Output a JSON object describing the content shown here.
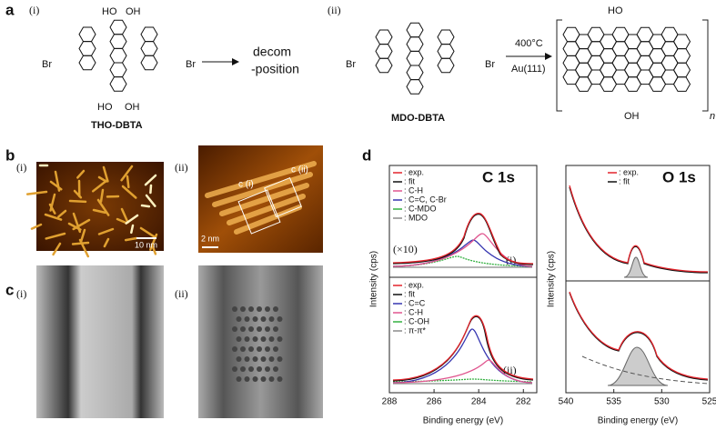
{
  "panel_labels": [
    "a",
    "b",
    "c",
    "d"
  ],
  "a": {
    "i": "(i)",
    "ii": "(ii)",
    "tho": {
      "oh_top": [
        "HO",
        "OH"
      ],
      "oh_bottom": [
        "HO",
        "OH"
      ],
      "br": [
        "Br",
        "Br"
      ],
      "name": "THO-DBTA"
    },
    "decomposition": [
      "decom",
      "-position"
    ],
    "mdo": {
      "br": [
        "Br",
        "Br"
      ],
      "name": "MDO-DBTA"
    },
    "conditions": [
      "400°C",
      "Au(111)"
    ],
    "product": {
      "oh": [
        "HO",
        "OH"
      ],
      "n": "n"
    }
  },
  "b": {
    "i": "(i)",
    "ii": "(ii)",
    "scale_i": "10 nm",
    "scale_ii": "2 nm",
    "boxes": [
      "c (i)",
      "c (ii)"
    ]
  },
  "c": {
    "i": "(i)",
    "ii": "(ii)"
  },
  "d": {
    "y_label": "Intensity (cps)",
    "x_label": "Binding energy (eV)",
    "c1s": {
      "title": "C 1s",
      "xlim": [
        288,
        281.4
      ],
      "xticks": [
        288,
        286,
        284,
        282
      ],
      "multiplier": "(×10)",
      "upper": {
        "label": "(i)",
        "legend": [
          {
            "name": ": exp.",
            "color": "#e3232b"
          },
          {
            "name": ": fit",
            "color": "#111111"
          },
          {
            "name": ": C-H",
            "color": "#e0568f"
          },
          {
            "name": ": C=C, C-Br",
            "color": "#3535b0"
          },
          {
            "name": ": C-MDO",
            "color": "#33b040"
          },
          {
            "name": ": MDO",
            "color": "#8a8a8a"
          }
        ]
      },
      "lower": {
        "label": "(ii)",
        "legend": [
          {
            "name": ": exp.",
            "color": "#e3232b"
          },
          {
            "name": ": fit",
            "color": "#111111"
          },
          {
            "name": ": C=C",
            "color": "#3535b0"
          },
          {
            "name": ": C-H",
            "color": "#e0568f"
          },
          {
            "name": ": C-OH",
            "color": "#33b040"
          },
          {
            "name": ": π-π*",
            "color": "#8a8a8a"
          }
        ]
      }
    },
    "o1s": {
      "title": "O 1s",
      "xlim": [
        540,
        525
      ],
      "xticks": [
        540,
        535,
        530,
        525
      ],
      "legend": [
        {
          "name": ": exp.",
          "color": "#e3232b"
        },
        {
          "name": ": fit",
          "color": "#111111"
        }
      ]
    }
  }
}
